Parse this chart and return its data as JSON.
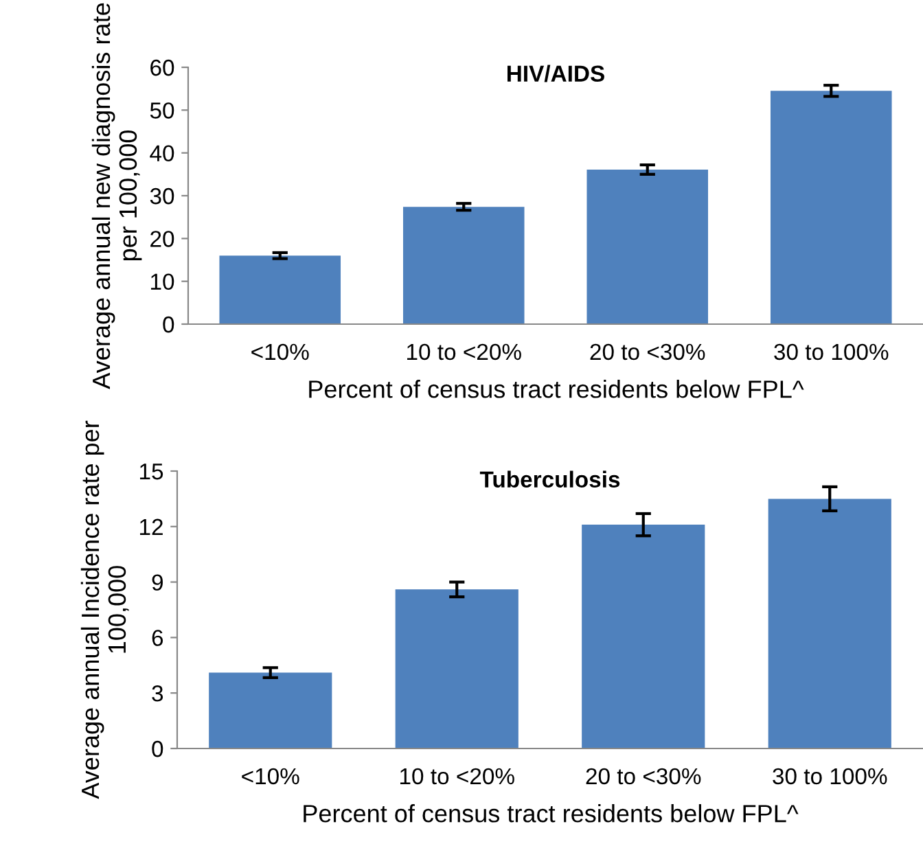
{
  "chart_data": [
    {
      "type": "bar",
      "title": "HIV/AIDS",
      "xlabel": "Percent of census tract residents below FPL^",
      "ylabel": "Average annual new diagnosis rate per 100,000",
      "categories": [
        "<10%",
        "10 to <20%",
        "20 to <30%",
        "30 to 100%"
      ],
      "values": [
        16.0,
        27.4,
        36.1,
        54.5
      ],
      "errors": [
        0.7,
        0.8,
        1.1,
        1.3
      ],
      "color": "#4f81bd",
      "ylim": [
        0,
        60
      ],
      "yticks": [
        0,
        10,
        20,
        30,
        40,
        50,
        60
      ],
      "grid": false,
      "legend": false
    },
    {
      "type": "bar",
      "title": "Tuberculosis",
      "xlabel": "Percent of census tract residents below FPL^",
      "ylabel": "Average annual Incidence rate per 100,000",
      "categories": [
        "<10%",
        "10 to <20%",
        "20 to <30%",
        "30 to 100%"
      ],
      "values": [
        4.1,
        8.6,
        12.1,
        13.5
      ],
      "errors": [
        0.27,
        0.4,
        0.6,
        0.65
      ],
      "color": "#4f81bd",
      "ylim": [
        0,
        15
      ],
      "yticks": [
        0,
        3,
        6,
        9,
        12,
        15
      ],
      "grid": false,
      "legend": false
    }
  ]
}
